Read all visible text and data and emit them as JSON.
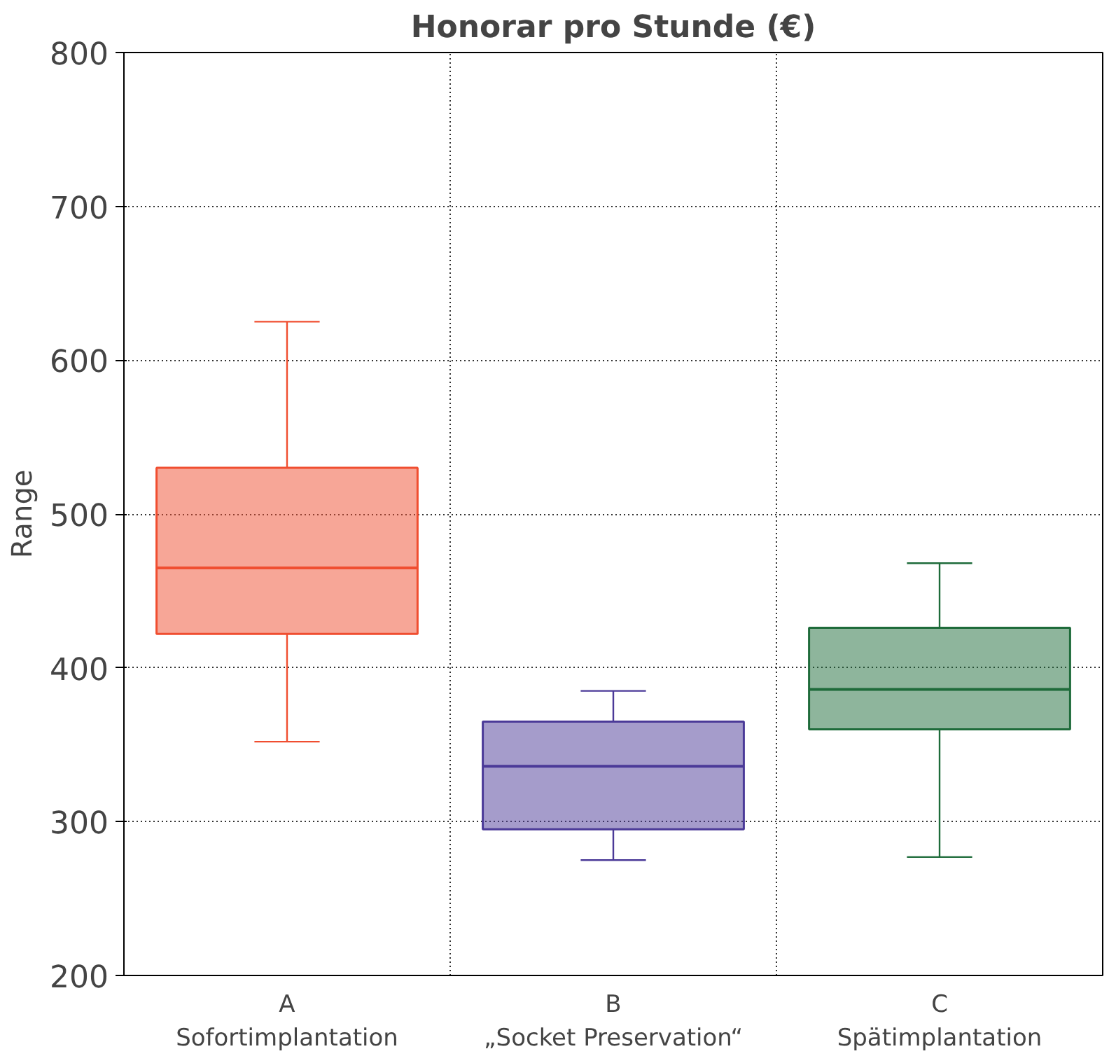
{
  "chart_data": {
    "type": "box",
    "title": "Honorar pro Stunde (€)",
    "ylabel": "Range",
    "categories": [
      "A\nSofortimplantation",
      "B\n„Socket Preservation“",
      "C\nSpätimplantation"
    ],
    "boxes": [
      {
        "low": 352,
        "q1": 422,
        "median": 465,
        "q3": 530,
        "high": 625
      },
      {
        "low": 275,
        "q1": 295,
        "median": 336,
        "q3": 365,
        "high": 385
      },
      {
        "low": 277,
        "q1": 360,
        "median": 386,
        "q3": 426,
        "high": 468
      }
    ],
    "colors": [
      "#f04e30",
      "#4b3a98",
      "#1e6b3a"
    ],
    "ylim": [
      200,
      800
    ],
    "yticks": [
      200,
      300,
      400,
      500,
      600,
      700,
      800
    ],
    "grid": true
  }
}
